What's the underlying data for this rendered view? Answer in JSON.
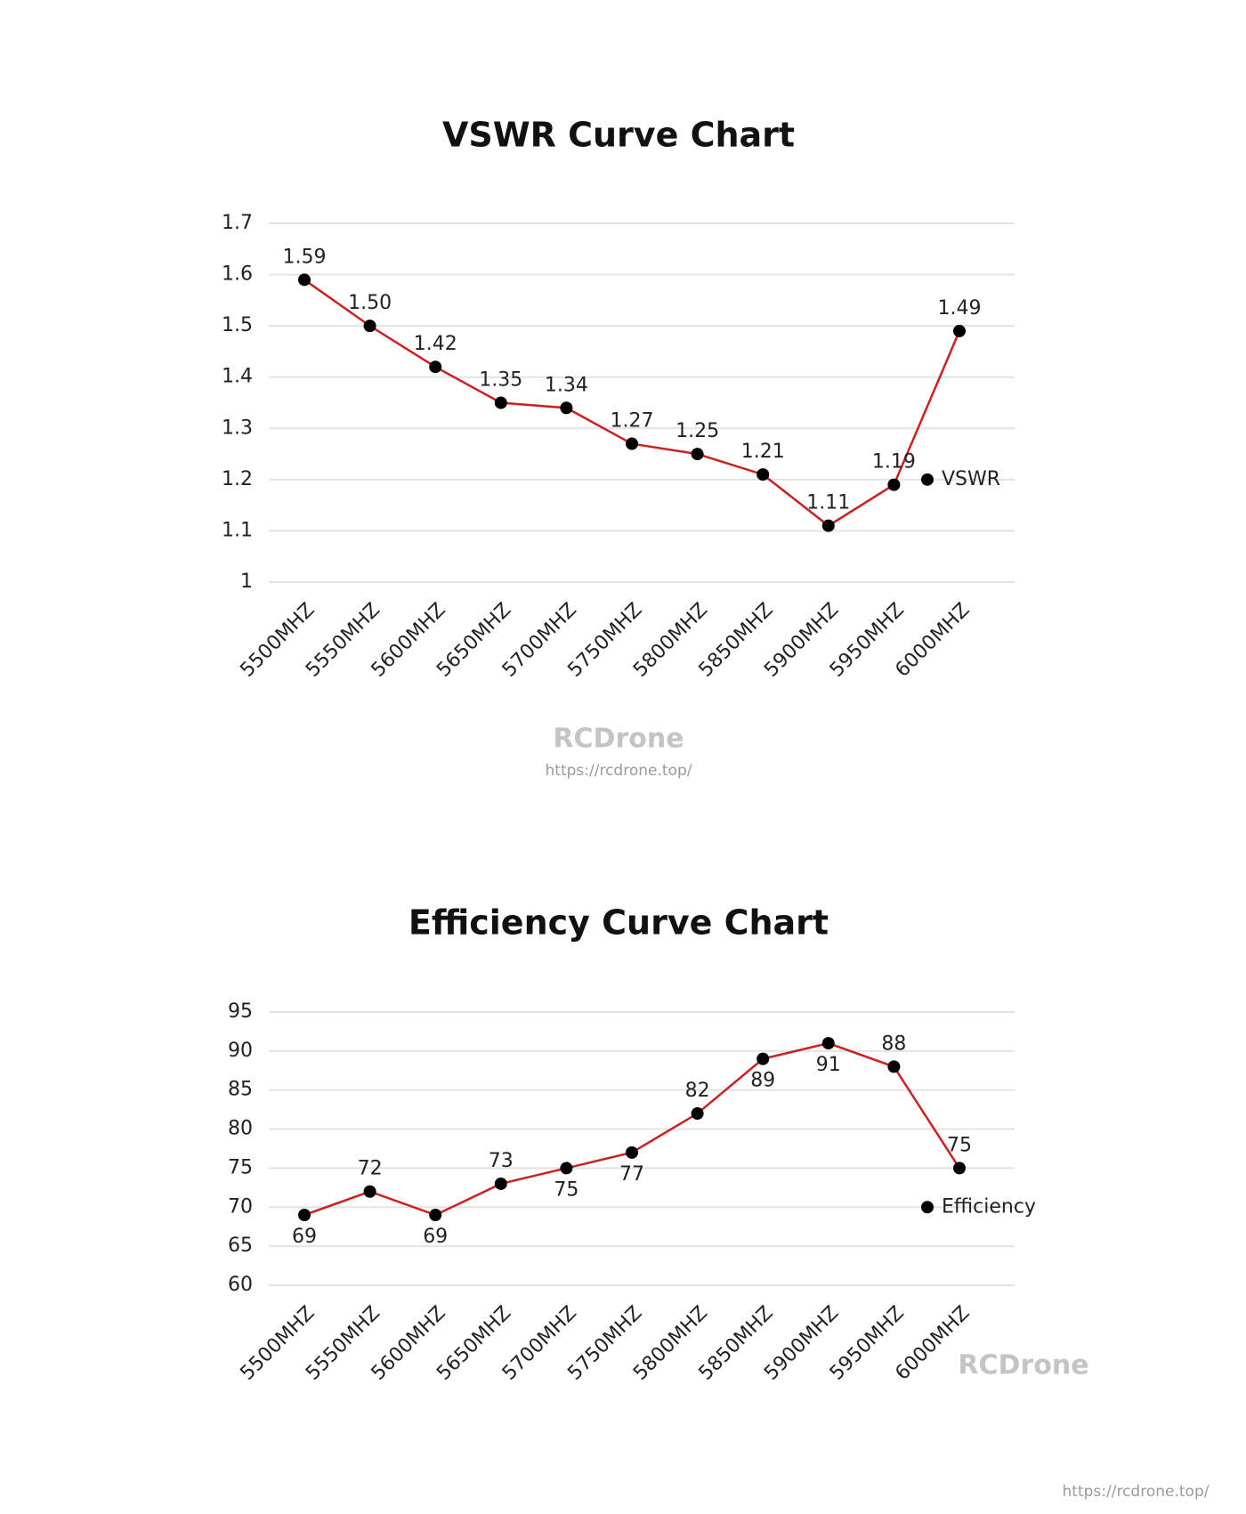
{
  "chart_data": [
    {
      "type": "line",
      "title": "VSWR Curve Chart",
      "categories": [
        "5500MHZ",
        "5550MHZ",
        "5600MHZ",
        "5650MHZ",
        "5700MHZ",
        "5750MHZ",
        "5800MHZ",
        "5850MHZ",
        "5900MHZ",
        "5950MHZ",
        "6000MHZ"
      ],
      "series": [
        {
          "name": "VSWR",
          "color": "#cc1f1f",
          "values": [
            1.59,
            1.5,
            1.42,
            1.35,
            1.34,
            1.27,
            1.25,
            1.21,
            1.11,
            1.19,
            1.49
          ],
          "value_labels": [
            "1.59",
            "1.50",
            "1.42",
            "1.35",
            "1.34",
            "1.27",
            "1.25",
            "1.21",
            "1.11",
            "1.19",
            "1.49"
          ]
        }
      ],
      "ylim": [
        1,
        1.7
      ],
      "yticks": [
        1,
        1.1,
        1.2,
        1.3,
        1.4,
        1.5,
        1.6,
        1.7
      ],
      "grid": true,
      "legend": "right"
    },
    {
      "type": "line",
      "title": "Efficiency Curve Chart",
      "categories": [
        "5500MHZ",
        "5550MHZ",
        "5600MHZ",
        "5650MHZ",
        "5700MHZ",
        "5750MHZ",
        "5800MHZ",
        "5850MHZ",
        "5900MHZ",
        "5950MHZ",
        "6000MHZ"
      ],
      "series": [
        {
          "name": "Efficiency",
          "color": "#cc1f1f",
          "values": [
            69,
            72,
            69,
            73,
            75,
            77,
            82,
            89,
            91,
            88,
            75
          ]
        }
      ],
      "ylim": [
        60,
        95
      ],
      "yticks": [
        60,
        65,
        70,
        75,
        80,
        85,
        90,
        95
      ],
      "grid": true,
      "legend": "right"
    }
  ],
  "watermarks": [
    "RCDrone",
    "https://rcdrone.top/",
    "RCDrone",
    "https://rcdrone.top/"
  ]
}
